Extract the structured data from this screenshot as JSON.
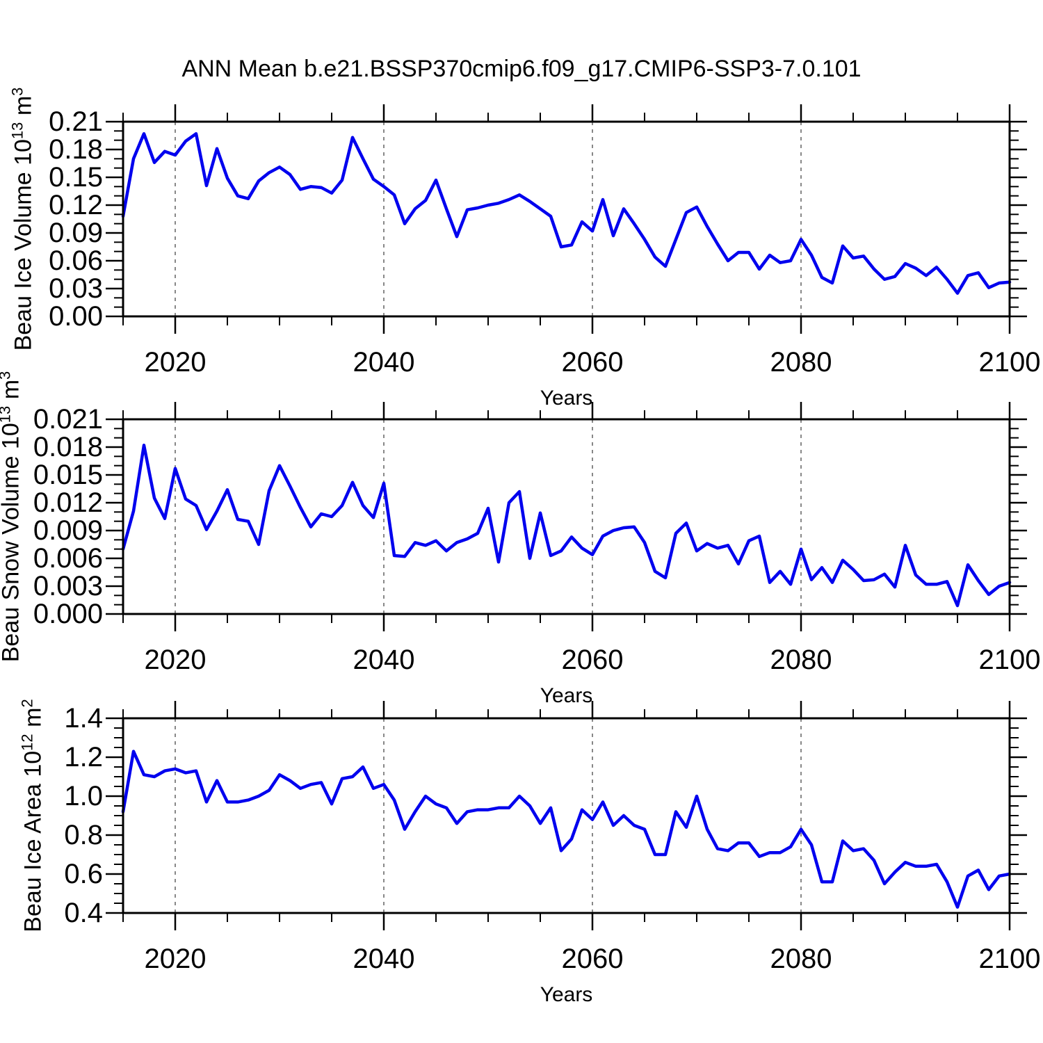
{
  "title": "ANN Mean b.e21.BSSP370cmip6.f09_g17.CMIP6-SSP3-7.0.101",
  "colors": {
    "line": "#0000ee",
    "axis": "#000000",
    "grid": "#888888"
  },
  "chart_data": [
    {
      "id": "beau-ice-volume",
      "type": "line",
      "title": "",
      "xlabel": "Years",
      "ylabel": "Beau Ice Volume 10^13 m^3",
      "ylabel_parts": {
        "base": "Beau Ice Volume 10",
        "exp": "13",
        "unit": " m",
        "unit_exp": "3"
      },
      "ylim": [
        0,
        0.21
      ],
      "y_major_step": 0.03,
      "y_minor_step": 0.01,
      "y_tick_labels": [
        "0.00",
        "0.03",
        "0.06",
        "0.09",
        "0.12",
        "0.15",
        "0.18",
        "0.21"
      ],
      "x_major_ticks": [
        2020,
        2040,
        2060,
        2080,
        2100
      ],
      "x_tick_labels": [
        "2020",
        "2040",
        "2060",
        "2080",
        "2100"
      ],
      "x_minor_step": 5,
      "gridline_years": [
        2020,
        2040,
        2060,
        2080
      ],
      "grid": "vertical-dashed",
      "legend": "none",
      "x": [
        2015,
        2016,
        2017,
        2018,
        2019,
        2020,
        2021,
        2022,
        2023,
        2024,
        2025,
        2026,
        2027,
        2028,
        2029,
        2030,
        2031,
        2032,
        2033,
        2034,
        2035,
        2036,
        2037,
        2038,
        2039,
        2040,
        2041,
        2042,
        2043,
        2044,
        2045,
        2046,
        2047,
        2048,
        2049,
        2050,
        2051,
        2052,
        2053,
        2054,
        2055,
        2056,
        2057,
        2058,
        2059,
        2060,
        2061,
        2062,
        2063,
        2064,
        2065,
        2066,
        2067,
        2068,
        2069,
        2070,
        2071,
        2072,
        2073,
        2074,
        2075,
        2076,
        2077,
        2078,
        2079,
        2080,
        2081,
        2082,
        2083,
        2084,
        2085,
        2086,
        2087,
        2088,
        2089,
        2090,
        2091,
        2092,
        2093,
        2094,
        2095,
        2096,
        2097,
        2098,
        2099,
        2100
      ],
      "values": [
        0.108,
        0.17,
        0.197,
        0.166,
        0.178,
        0.174,
        0.189,
        0.197,
        0.141,
        0.181,
        0.149,
        0.13,
        0.127,
        0.146,
        0.155,
        0.161,
        0.153,
        0.137,
        0.14,
        0.139,
        0.133,
        0.147,
        0.193,
        0.17,
        0.148,
        0.14,
        0.131,
        0.1,
        0.116,
        0.125,
        0.147,
        0.116,
        0.086,
        0.115,
        0.117,
        0.12,
        0.122,
        0.126,
        0.131,
        0.124,
        0.116,
        0.108,
        0.075,
        0.077,
        0.102,
        0.092,
        0.126,
        0.087,
        0.116,
        0.1,
        0.083,
        0.064,
        0.054,
        0.083,
        0.112,
        0.118,
        0.097,
        0.078,
        0.06,
        0.069,
        0.069,
        0.051,
        0.066,
        0.058,
        0.06,
        0.083,
        0.066,
        0.042,
        0.036,
        0.076,
        0.063,
        0.065,
        0.051,
        0.04,
        0.043,
        0.057,
        0.052,
        0.044,
        0.053,
        0.04,
        0.025,
        0.044,
        0.047,
        0.031,
        0.036,
        0.037
      ]
    },
    {
      "id": "beau-snow-volume",
      "type": "line",
      "title": "",
      "xlabel": "Years",
      "ylabel": "Beau Snow Volume 10^13 m^3",
      "ylabel_parts": {
        "base": "Beau Snow Volume 10",
        "exp": "13",
        "unit": " m",
        "unit_exp": "3"
      },
      "ylim": [
        0,
        0.021
      ],
      "y_major_step": 0.003,
      "y_minor_step": 0.001,
      "y_tick_labels": [
        "0.000",
        "0.003",
        "0.006",
        "0.009",
        "0.012",
        "0.015",
        "0.018",
        "0.021"
      ],
      "x_major_ticks": [
        2020,
        2040,
        2060,
        2080,
        2100
      ],
      "x_tick_labels": [
        "2020",
        "2040",
        "2060",
        "2080",
        "2100"
      ],
      "x_minor_step": 5,
      "gridline_years": [
        2020,
        2040,
        2060,
        2080
      ],
      "grid": "vertical-dashed",
      "legend": "none",
      "x": [
        2015,
        2016,
        2017,
        2018,
        2019,
        2020,
        2021,
        2022,
        2023,
        2024,
        2025,
        2026,
        2027,
        2028,
        2029,
        2030,
        2031,
        2032,
        2033,
        2034,
        2035,
        2036,
        2037,
        2038,
        2039,
        2040,
        2041,
        2042,
        2043,
        2044,
        2045,
        2046,
        2047,
        2048,
        2049,
        2050,
        2051,
        2052,
        2053,
        2054,
        2055,
        2056,
        2057,
        2058,
        2059,
        2060,
        2061,
        2062,
        2063,
        2064,
        2065,
        2066,
        2067,
        2068,
        2069,
        2070,
        2071,
        2072,
        2073,
        2074,
        2075,
        2076,
        2077,
        2078,
        2079,
        2080,
        2081,
        2082,
        2083,
        2084,
        2085,
        2086,
        2087,
        2088,
        2089,
        2090,
        2091,
        2092,
        2093,
        2094,
        2095,
        2096,
        2097,
        2098,
        2099,
        2100
      ],
      "values": [
        0.007,
        0.0111,
        0.0182,
        0.0125,
        0.0103,
        0.0157,
        0.0124,
        0.0117,
        0.0091,
        0.0111,
        0.0134,
        0.0102,
        0.01,
        0.0075,
        0.0133,
        0.016,
        0.0138,
        0.0115,
        0.0094,
        0.0108,
        0.0105,
        0.0117,
        0.0142,
        0.0117,
        0.0104,
        0.0141,
        0.0063,
        0.0062,
        0.0077,
        0.0074,
        0.0079,
        0.0068,
        0.0077,
        0.0081,
        0.0087,
        0.0114,
        0.0056,
        0.012,
        0.0132,
        0.006,
        0.0109,
        0.0063,
        0.0068,
        0.0083,
        0.0071,
        0.0064,
        0.0084,
        0.009,
        0.0093,
        0.0094,
        0.0077,
        0.0046,
        0.0039,
        0.0087,
        0.0098,
        0.0068,
        0.0076,
        0.0071,
        0.0074,
        0.0054,
        0.0079,
        0.0084,
        0.0034,
        0.0046,
        0.0032,
        0.007,
        0.0037,
        0.005,
        0.0034,
        0.0058,
        0.0048,
        0.0036,
        0.0037,
        0.0043,
        0.0029,
        0.0074,
        0.0042,
        0.0032,
        0.0032,
        0.0035,
        0.0009,
        0.0053,
        0.0036,
        0.0021,
        0.003,
        0.0034
      ]
    },
    {
      "id": "beau-ice-area",
      "type": "line",
      "title": "",
      "xlabel": "Years",
      "ylabel": "Beau Ice Area 10^12 m^2",
      "ylabel_parts": {
        "base": "Beau Ice Area 10",
        "exp": "12",
        "unit": " m",
        "unit_exp": "2"
      },
      "ylim": [
        0.4,
        1.4
      ],
      "y_major_step": 0.2,
      "y_minor_step": 0.05,
      "y_tick_labels": [
        "0.4",
        "0.6",
        "0.8",
        "1.0",
        "1.2",
        "1.4"
      ],
      "x_major_ticks": [
        2020,
        2040,
        2060,
        2080,
        2100
      ],
      "x_tick_labels": [
        "2020",
        "2040",
        "2060",
        "2080",
        "2100"
      ],
      "x_minor_step": 5,
      "gridline_years": [
        2020,
        2040,
        2060,
        2080
      ],
      "grid": "vertical-dashed",
      "legend": "none",
      "x": [
        2015,
        2016,
        2017,
        2018,
        2019,
        2020,
        2021,
        2022,
        2023,
        2024,
        2025,
        2026,
        2027,
        2028,
        2029,
        2030,
        2031,
        2032,
        2033,
        2034,
        2035,
        2036,
        2037,
        2038,
        2039,
        2040,
        2041,
        2042,
        2043,
        2044,
        2045,
        2046,
        2047,
        2048,
        2049,
        2050,
        2051,
        2052,
        2053,
        2054,
        2055,
        2056,
        2057,
        2058,
        2059,
        2060,
        2061,
        2062,
        2063,
        2064,
        2065,
        2066,
        2067,
        2068,
        2069,
        2070,
        2071,
        2072,
        2073,
        2074,
        2075,
        2076,
        2077,
        2078,
        2079,
        2080,
        2081,
        2082,
        2083,
        2084,
        2085,
        2086,
        2087,
        2088,
        2089,
        2090,
        2091,
        2092,
        2093,
        2094,
        2095,
        2096,
        2097,
        2098,
        2099,
        2100
      ],
      "values": [
        0.92,
        1.23,
        1.11,
        1.1,
        1.13,
        1.14,
        1.12,
        1.13,
        0.97,
        1.08,
        0.97,
        0.97,
        0.98,
        1.0,
        1.03,
        1.11,
        1.08,
        1.04,
        1.06,
        1.07,
        0.96,
        1.09,
        1.1,
        1.15,
        1.04,
        1.06,
        0.98,
        0.83,
        0.92,
        1.0,
        0.96,
        0.94,
        0.86,
        0.92,
        0.93,
        0.93,
        0.94,
        0.94,
        1.0,
        0.95,
        0.86,
        0.94,
        0.72,
        0.78,
        0.93,
        0.88,
        0.97,
        0.85,
        0.9,
        0.85,
        0.83,
        0.7,
        0.7,
        0.92,
        0.84,
        1.0,
        0.83,
        0.73,
        0.72,
        0.76,
        0.76,
        0.69,
        0.71,
        0.71,
        0.74,
        0.83,
        0.75,
        0.56,
        0.56,
        0.77,
        0.72,
        0.73,
        0.67,
        0.55,
        0.61,
        0.66,
        0.64,
        0.64,
        0.65,
        0.56,
        0.43,
        0.59,
        0.62,
        0.52,
        0.59,
        0.6
      ]
    }
  ]
}
